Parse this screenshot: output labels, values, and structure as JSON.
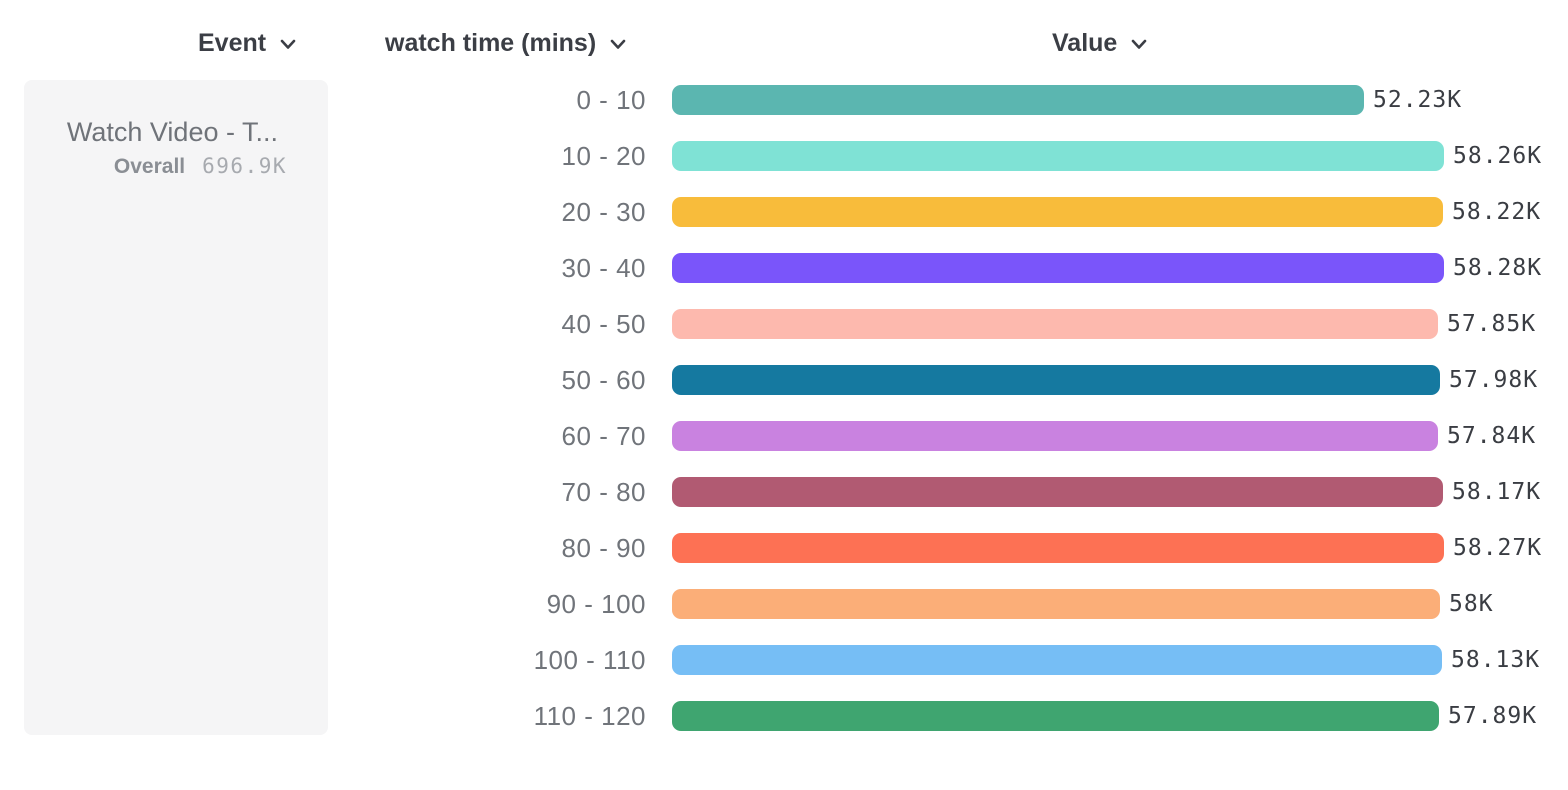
{
  "header": {
    "event_column_label": "Event",
    "breakdown_column_label": "watch time (mins)",
    "value_column_label": "Value"
  },
  "legend": {
    "event_name": "Watch Video - T...",
    "overall_label": "Overall",
    "overall_value": "696.9K"
  },
  "chart_data": {
    "type": "bar",
    "orientation": "horizontal",
    "title": "",
    "xlabel": "watch time (mins)",
    "ylabel": "Value",
    "grid": false,
    "legend_position": "left",
    "value_axis_range": [
      0,
      58280
    ],
    "categories": [
      "0 - 10",
      "10 - 20",
      "20 - 30",
      "30 - 40",
      "40 - 50",
      "50 - 60",
      "60 - 70",
      "70 - 80",
      "80 - 90",
      "90 - 100",
      "100 - 110",
      "110 - 120"
    ],
    "values": [
      52230,
      58260,
      58220,
      58280,
      57850,
      57980,
      57840,
      58170,
      58270,
      58000,
      58130,
      57890
    ],
    "value_labels": [
      "52.23K",
      "58.26K",
      "58.22K",
      "58.28K",
      "57.85K",
      "57.98K",
      "57.84K",
      "58.17K",
      "58.27K",
      "58K",
      "58.13K",
      "57.89K"
    ],
    "bar_colors": [
      "#5BB6B0",
      "#7FE2D5",
      "#F8BC3B",
      "#7A55FA",
      "#FDB9AE",
      "#1579A0",
      "#C982E0",
      "#B15A72",
      "#FD7154",
      "#FBAE78",
      "#76BEF5",
      "#3FA570"
    ]
  },
  "colors": {
    "header_text": "#3B3E45",
    "category_label": "#70747A",
    "value_label": "#3A3D43",
    "legend_panel_bg": "#F5F5F6",
    "legend_name": "#6F7379",
    "legend_overall": "#8A8E94",
    "legend_value": "#A7AAAF"
  }
}
